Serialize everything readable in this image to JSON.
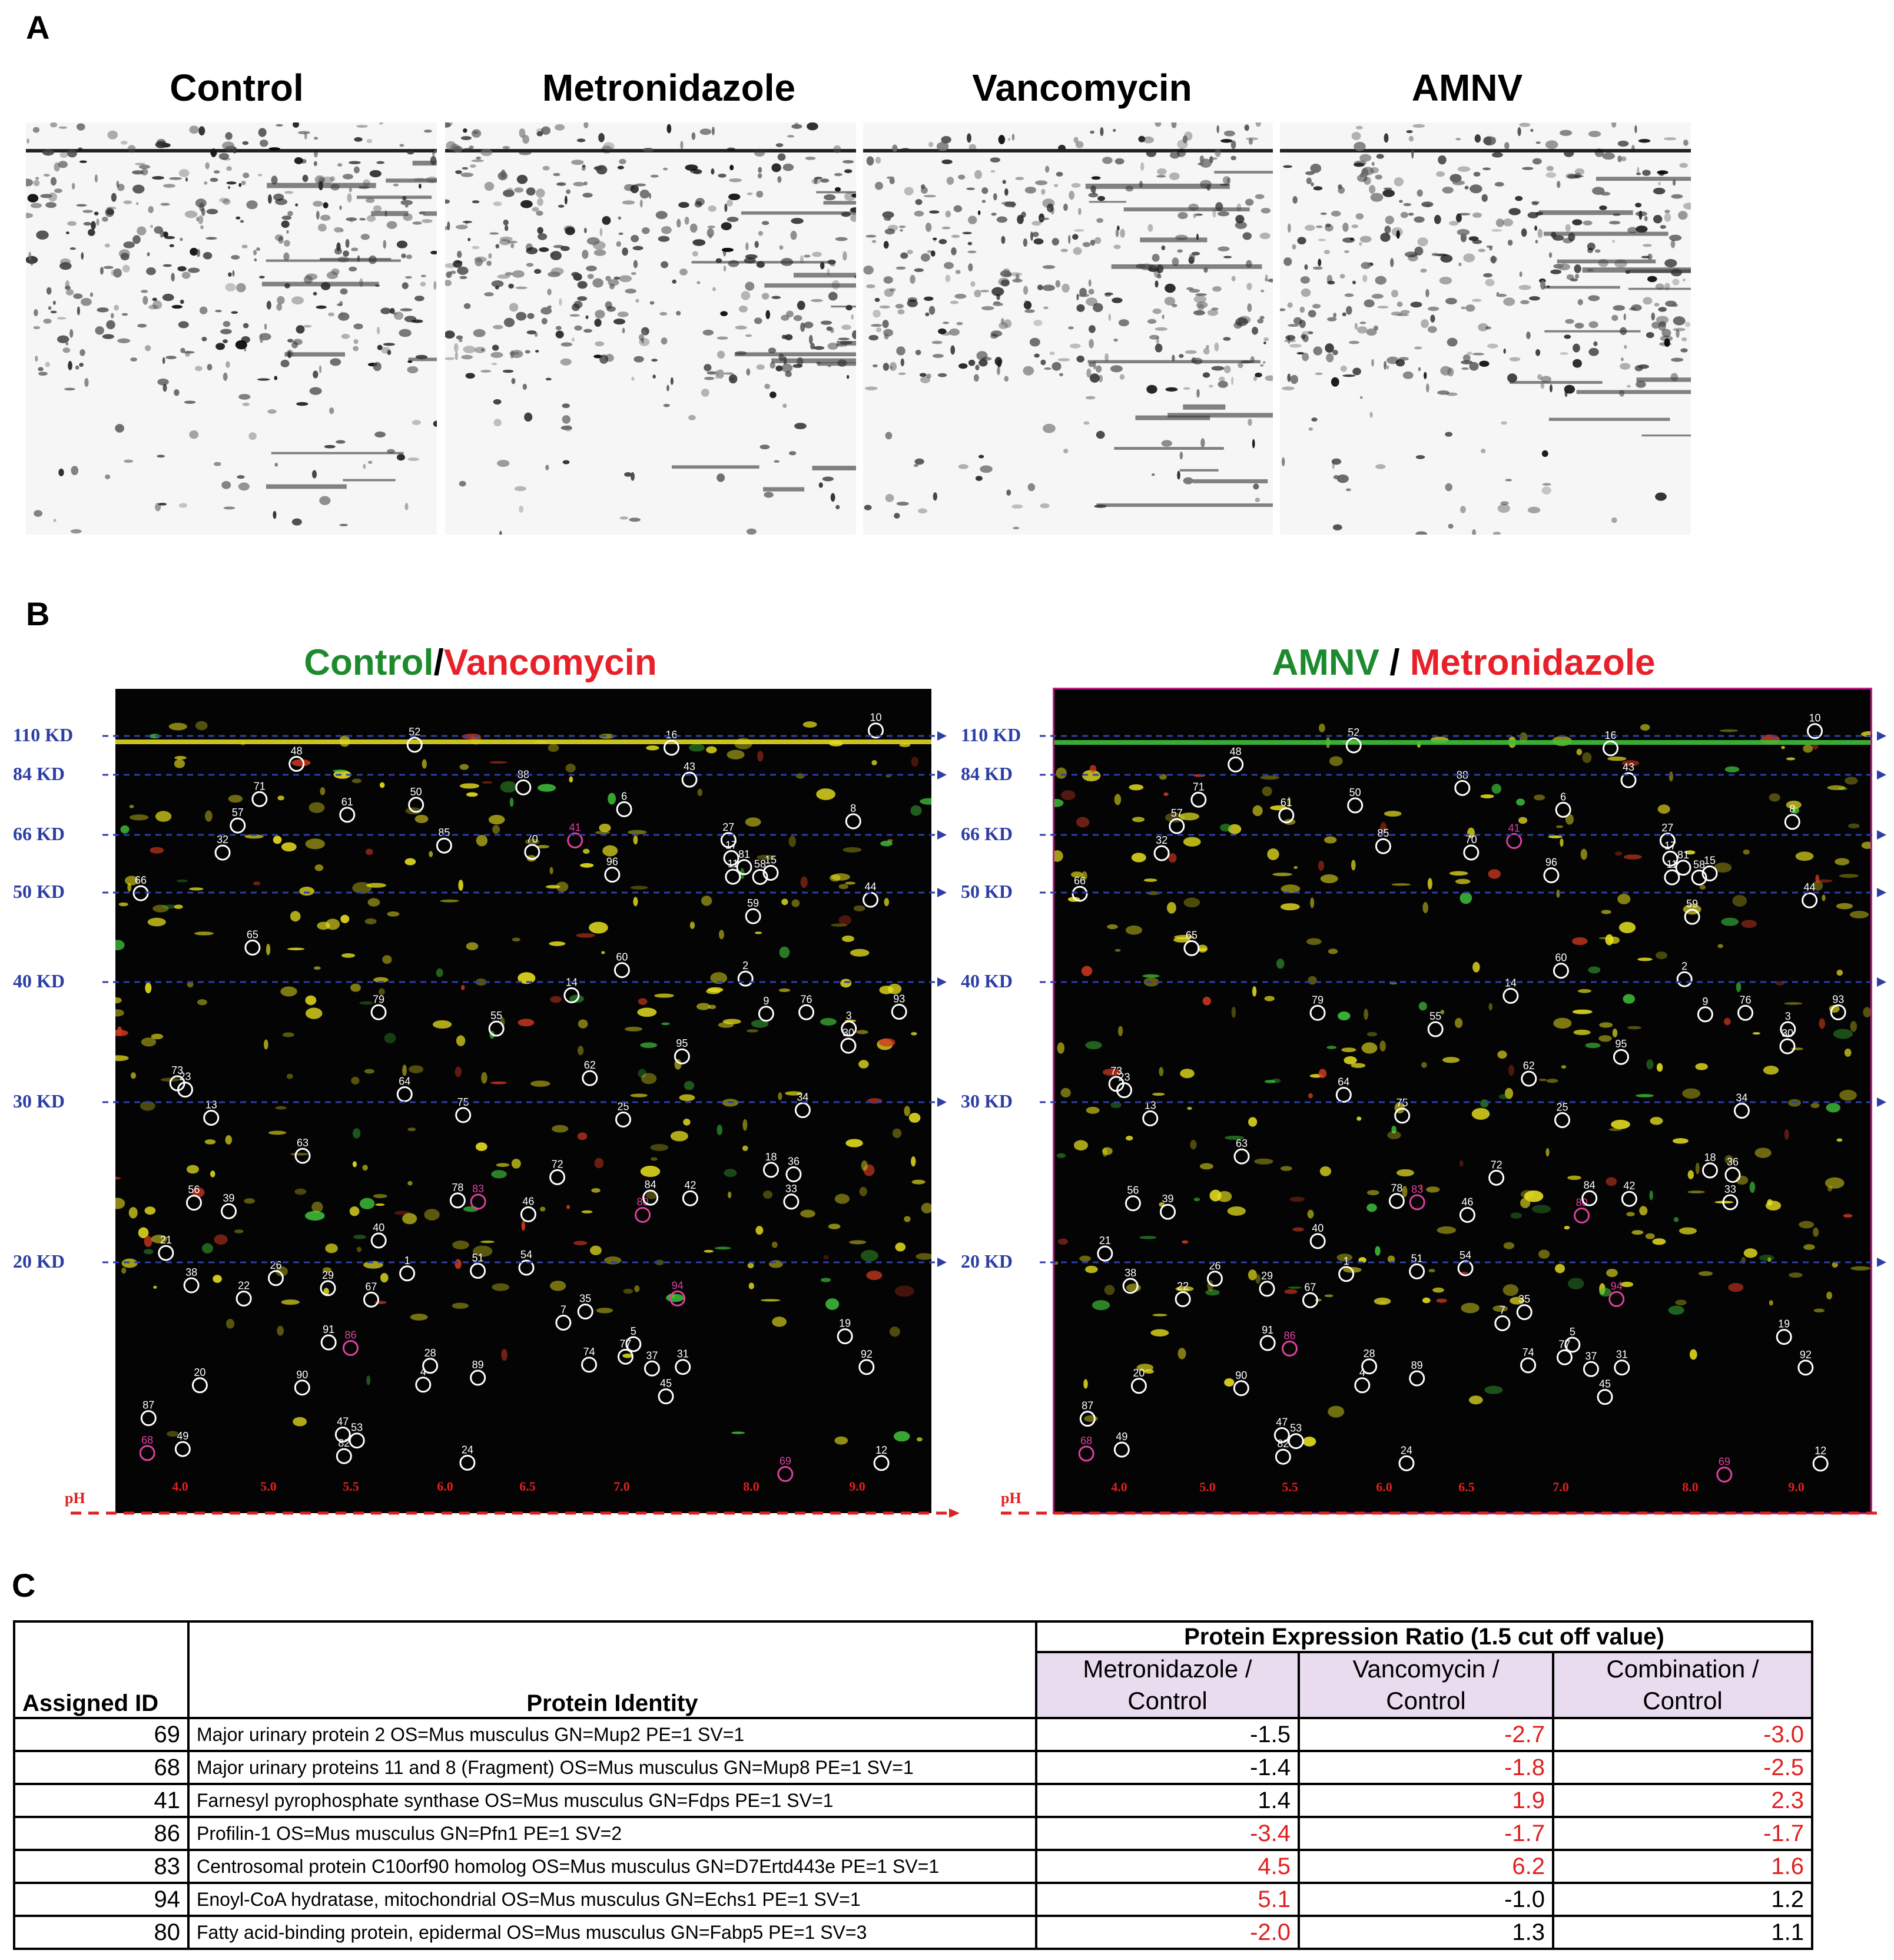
{
  "panels": {
    "a": "A",
    "b": "B",
    "c": "C"
  },
  "panel_a": {
    "titles": [
      "Control",
      "Metronidazole",
      "Vancomycin",
      "AMNV"
    ]
  },
  "panel_b": {
    "left_title": {
      "green": "Control",
      "sep": "/",
      "red": "Vancomycin"
    },
    "right_title": {
      "green": "AMNV",
      "sep": " / ",
      "red": "Metronidazole"
    },
    "mw_markers": [
      "110 KD",
      "84 KD",
      "66 KD",
      "50 KD",
      "40 KD",
      "30 KD",
      "20 KD"
    ],
    "ph_label": "pH",
    "ph_ticks": [
      "4.0",
      "5.0",
      "5.5",
      "6.0",
      "6.5",
      "7.0",
      "8.0",
      "9.0"
    ],
    "spot_ids": [
      "1",
      "2",
      "3",
      "4",
      "5",
      "6",
      "7",
      "8",
      "9",
      "10",
      "11",
      "12",
      "13",
      "14",
      "15",
      "16",
      "17",
      "18",
      "19",
      "20",
      "21",
      "22",
      "23",
      "24",
      "25",
      "26",
      "27",
      "28",
      "29",
      "30",
      "31",
      "32",
      "33",
      "34",
      "35",
      "36",
      "37",
      "38",
      "39",
      "40",
      "41",
      "42",
      "43",
      "44",
      "45",
      "46",
      "47",
      "48",
      "49",
      "50",
      "51",
      "52",
      "53",
      "54",
      "55",
      "56",
      "57",
      "58",
      "59",
      "60",
      "61",
      "62",
      "63",
      "64",
      "65",
      "66",
      "67",
      "68",
      "69",
      "70",
      "71",
      "72",
      "73",
      "74",
      "75",
      "76",
      "77",
      "78",
      "79",
      "80",
      "81",
      "82",
      "83",
      "84",
      "85",
      "86",
      "87",
      "88",
      "89",
      "90",
      "91",
      "92",
      "93",
      "94",
      "95",
      "96"
    ],
    "highlight_ids": [
      "41",
      "68",
      "69",
      "80",
      "83",
      "86",
      "94"
    ],
    "colors": {
      "green": "#1e8a2e",
      "red": "#e8202a",
      "marker_blue": "#2d3fa6",
      "ph_red": "#e02020",
      "highlight": "#e040a0",
      "border": "#c0208c"
    }
  },
  "panel_c": {
    "header": {
      "assigned_id": "Assigned ID",
      "protein_identity": "Protein Identity",
      "ratio_title": "Protein Expression Ratio (1.5 cut off value)",
      "col1": [
        "Metronidazole /",
        "Control"
      ],
      "col2": [
        "Vancomycin /",
        "Control"
      ],
      "col3": [
        "Combination /",
        "Control"
      ]
    },
    "rows": [
      {
        "id": "69",
        "protein": "Major urinary protein 2 OS=Mus musculus GN=Mup2 PE=1 SV=1",
        "metro": "-1.5",
        "vanco": "-2.7",
        "combo": "-3.0",
        "sig": [
          false,
          true,
          true
        ]
      },
      {
        "id": "68",
        "protein": "Major urinary proteins 11 and 8 (Fragment) OS=Mus musculus GN=Mup8 PE=1 SV=1",
        "metro": "-1.4",
        "vanco": "-1.8",
        "combo": "-2.5",
        "sig": [
          false,
          true,
          true
        ]
      },
      {
        "id": "41",
        "protein": "Farnesyl pyrophosphate synthase OS=Mus musculus GN=Fdps PE=1 SV=1",
        "metro": "1.4",
        "vanco": "1.9",
        "combo": "2.3",
        "sig": [
          false,
          true,
          true
        ]
      },
      {
        "id": "86",
        "protein": "Profilin-1 OS=Mus musculus GN=Pfn1 PE=1 SV=2",
        "metro": "-3.4",
        "vanco": "-1.7",
        "combo": "-1.7",
        "sig": [
          true,
          true,
          true
        ]
      },
      {
        "id": "83",
        "protein": "Centrosomal protein C10orf90 homolog OS=Mus musculus GN=D7Ertd443e PE=1 SV=1",
        "metro": "4.5",
        "vanco": "6.2",
        "combo": "1.6",
        "sig": [
          true,
          true,
          true
        ]
      },
      {
        "id": "94",
        "protein": "Enoyl-CoA hydratase, mitochondrial OS=Mus musculus GN=Echs1 PE=1 SV=1",
        "metro": "5.1",
        "vanco": "-1.0",
        "combo": "1.2",
        "sig": [
          true,
          false,
          false
        ]
      },
      {
        "id": "80",
        "protein": "Fatty acid-binding protein, epidermal OS=Mus musculus GN=Fabp5 PE=1 SV=3",
        "metro": "-2.0",
        "vanco": "1.3",
        "combo": "1.1",
        "sig": [
          true,
          false,
          false
        ]
      }
    ]
  }
}
